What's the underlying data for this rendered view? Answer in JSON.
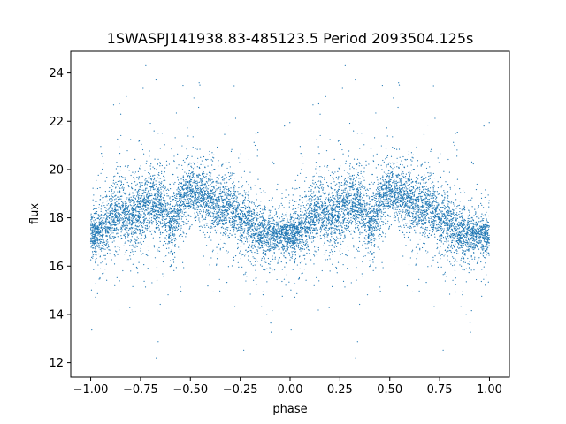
{
  "chart_data": {
    "type": "scatter",
    "title": "1SWASPJ141938.83-485123.5 Period 2093504.125s",
    "xlabel": "phase",
    "ylabel": "flux",
    "xlim": [
      -1.1,
      1.1
    ],
    "ylim": [
      11.4,
      24.9
    ],
    "xticks": [
      -1.0,
      -0.75,
      -0.5,
      -0.25,
      0.0,
      0.25,
      0.5,
      0.75,
      1.0
    ],
    "xtick_labels": [
      "−1.00",
      "−0.75",
      "−0.50",
      "−0.25",
      "0.00",
      "0.25",
      "0.50",
      "0.75",
      "1.00"
    ],
    "yticks": [
      12,
      14,
      16,
      18,
      20,
      22,
      24
    ],
    "ytick_labels": [
      "12",
      "14",
      "16",
      "18",
      "20",
      "22",
      "24"
    ],
    "grid": false,
    "legend": "none",
    "marker_color": "#1f77b4",
    "phase_range": [
      -1.0,
      1.0
    ],
    "phase_repeat": 1.0,
    "approx_point_count": 10000,
    "profile_phase": [
      0.0,
      0.05,
      0.1,
      0.15,
      0.2,
      0.25,
      0.3,
      0.35,
      0.4,
      0.45,
      0.5,
      0.55,
      0.6,
      0.65,
      0.7,
      0.75,
      0.8,
      0.85,
      0.9,
      0.95,
      1.0
    ],
    "profile_median_flux": [
      17.3,
      17.5,
      17.9,
      18.4,
      18.0,
      18.3,
      18.8,
      18.5,
      17.7,
      18.6,
      19.1,
      19.0,
      18.6,
      18.4,
      18.5,
      17.9,
      17.6,
      17.4,
      17.3,
      17.4,
      17.3
    ],
    "profile_spread": [
      0.6,
      0.7,
      0.8,
      0.9,
      0.9,
      1.0,
      1.0,
      0.9,
      0.9,
      0.8,
      0.8,
      0.8,
      0.9,
      0.9,
      0.9,
      0.8,
      0.8,
      0.7,
      0.7,
      0.6,
      0.6
    ],
    "flux_extremes": [
      12.2,
      24.3
    ]
  }
}
